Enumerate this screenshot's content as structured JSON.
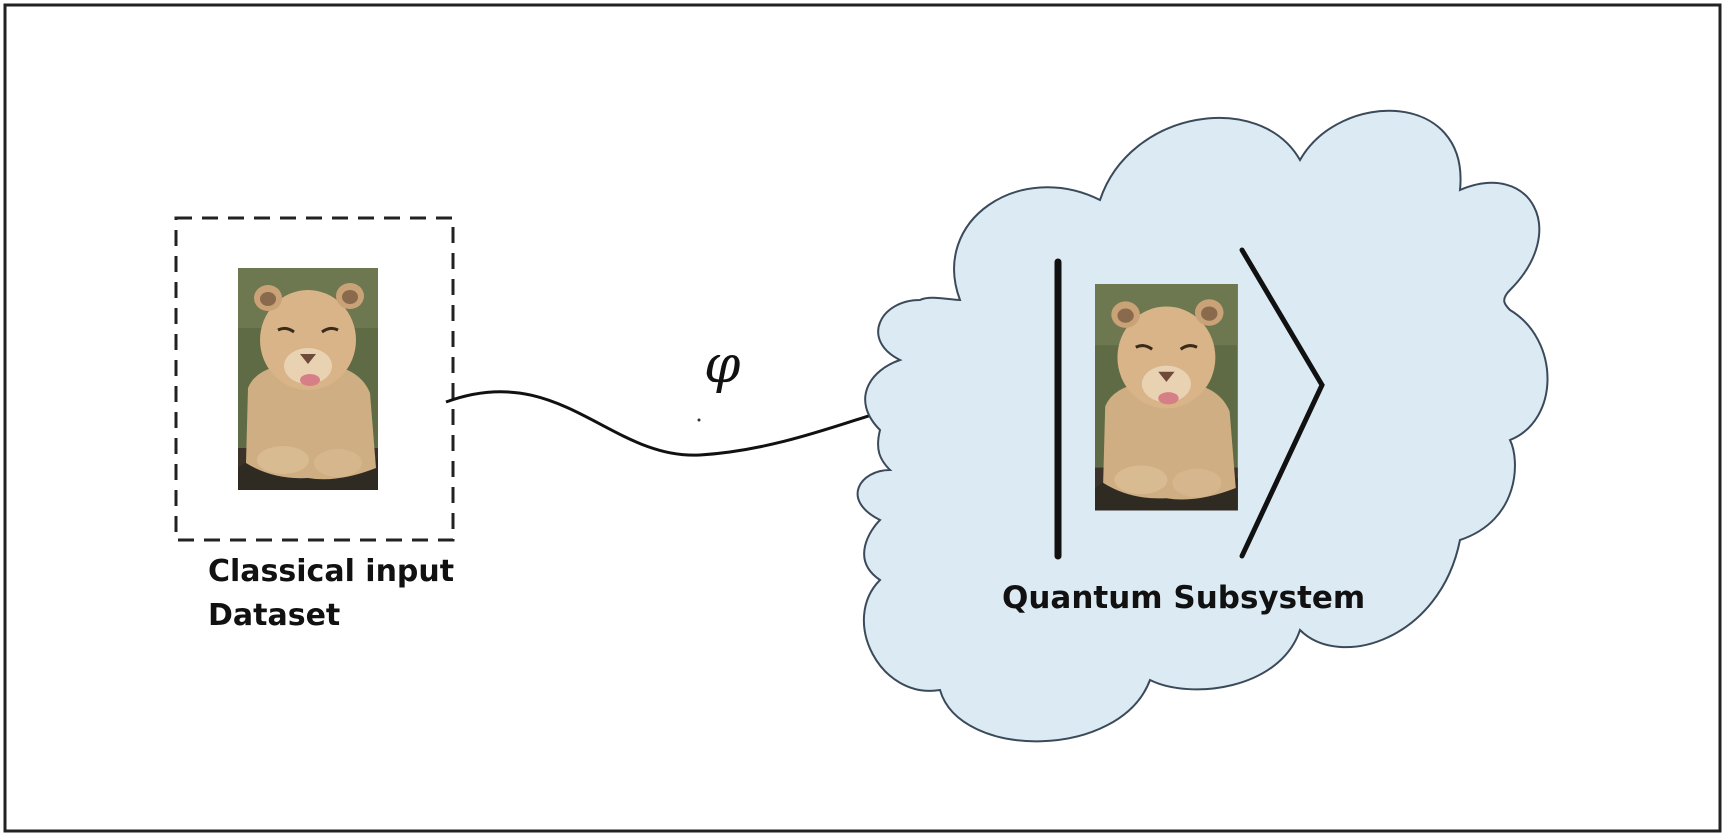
{
  "diagram": {
    "input": {
      "label_line1": "Classical input",
      "label_line2": "Dataset",
      "image_icon": "lioness-photo"
    },
    "mapping": {
      "symbol": "φ",
      "arrow_icon": "curved-arrow"
    },
    "quantum": {
      "label": "Quantum Subsystem",
      "shape_icon": "cloud",
      "ket_icon": "ket-bracket",
      "image_icon": "lioness-photo"
    },
    "colors": {
      "cloud_fill": "#dcebf3",
      "cloud_stroke": "#3b4a5a",
      "frame_stroke": "#222222",
      "ink": "#111111"
    }
  }
}
